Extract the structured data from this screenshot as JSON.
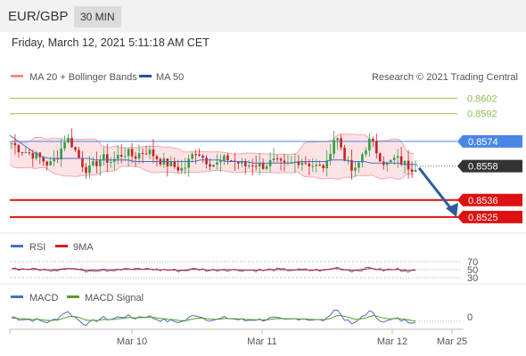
{
  "header": {
    "pair": "EUR/GBP",
    "timeframe": "30 MIN"
  },
  "timestamp": "Friday, March 12, 2021 5:11:18 AM CET",
  "legend": {
    "bollinger": "MA 20 + Bollinger Bands",
    "ma50": "MA 50",
    "rsi": "RSI",
    "rsi_ma": "9MA",
    "macd": "MACD",
    "macd_signal": "MACD Signal"
  },
  "copyright": "Research © 2021 Trading Central",
  "colors": {
    "up": "#2ea043",
    "down": "#cc1f1f",
    "ma50": "#4a6fbf",
    "bollinger": "#f2a8ae",
    "bollinger_fill": "#fde3e6",
    "resistance": "#8fbf55",
    "support": "#dd1111",
    "pivot": "#4a86e8",
    "last": "#333333",
    "arrow": "#2b5d9c",
    "macd_signal": "#5a9a2a"
  },
  "chart_data": [
    {
      "type": "candlestick",
      "title": "EUR/GBP",
      "ylim": [
        0.8518,
        0.8608
      ],
      "x_ticks": [
        "Mar 10",
        "Mar 11",
        "Mar 12",
        "Mar 25"
      ],
      "levels": [
        {
          "label": "0.8602",
          "value": 0.8602,
          "kind": "resistance"
        },
        {
          "label": "0.8592",
          "value": 0.8592,
          "kind": "resistance"
        },
        {
          "label": "0.8574",
          "value": 0.8574,
          "kind": "pivot"
        },
        {
          "label": "0.8558",
          "value": 0.8558,
          "kind": "last"
        },
        {
          "label": "0.8536",
          "value": 0.8536,
          "kind": "support"
        },
        {
          "label": "0.8525",
          "value": 0.8525,
          "kind": "support"
        }
      ],
      "close_path": [
        0.8573,
        0.8571,
        0.8569,
        0.8568,
        0.8567,
        0.8566,
        0.8565,
        0.8564,
        0.8562,
        0.856,
        0.8559,
        0.8562,
        0.8565,
        0.857,
        0.8576,
        0.8575,
        0.8571,
        0.8566,
        0.8561,
        0.8557,
        0.8555,
        0.8558,
        0.856,
        0.8562,
        0.8563,
        0.8562,
        0.8561,
        0.8563,
        0.8565,
        0.8566,
        0.8567,
        0.8565,
        0.8564,
        0.8566,
        0.8567,
        0.8568,
        0.8567,
        0.8565,
        0.8563,
        0.8561,
        0.856,
        0.8559,
        0.8558,
        0.8557,
        0.8556,
        0.8557,
        0.8561,
        0.8565,
        0.8568,
        0.8566,
        0.8563,
        0.8561,
        0.856,
        0.8559,
        0.856,
        0.8562,
        0.8563,
        0.8562,
        0.8561,
        0.856,
        0.8559,
        0.8558,
        0.8559,
        0.856,
        0.8559,
        0.8558,
        0.8559,
        0.856,
        0.8561,
        0.856,
        0.8559,
        0.8558,
        0.8559,
        0.856,
        0.8561,
        0.8562,
        0.8561,
        0.856,
        0.8559,
        0.8558,
        0.8557,
        0.8558,
        0.8559,
        0.857,
        0.8577,
        0.8575,
        0.8568,
        0.8561,
        0.8557,
        0.8553,
        0.8558,
        0.8565,
        0.857,
        0.8574,
        0.8572,
        0.8567,
        0.8563,
        0.856,
        0.8559,
        0.8562,
        0.8563,
        0.8561,
        0.856,
        0.8558,
        0.8557,
        0.8558
      ],
      "ma50_path": [
        0.8578,
        0.8575,
        0.8572,
        0.8569,
        0.8566,
        0.8564,
        0.8563,
        0.8563,
        0.8563,
        0.8563,
        0.8563,
        0.8563,
        0.8563,
        0.8562,
        0.8562,
        0.8562,
        0.8562,
        0.8562,
        0.8562,
        0.8561,
        0.8561,
        0.8561,
        0.8561,
        0.8561,
        0.8561,
        0.8561,
        0.8561,
        0.8561,
        0.8561,
        0.8562,
        0.8562,
        0.8562,
        0.8562,
        0.8561,
        0.8561,
        0.8561,
        0.8561,
        0.856,
        0.856,
        0.856,
        0.856,
        0.856,
        0.856,
        0.856,
        0.8561,
        0.8561,
        0.8561,
        0.8561,
        0.8561,
        0.8562,
        0.8562,
        0.8562,
        0.8561,
        0.8561,
        0.8561,
        0.856,
        0.856,
        0.856,
        0.856,
        0.856,
        0.8559,
        0.8559,
        0.8559
      ],
      "forecast_arrow": {
        "from": 0.8558,
        "to": 0.8525
      }
    },
    {
      "type": "line",
      "title": "RSI",
      "y_ticks": [
        70,
        50,
        30
      ],
      "series": [
        {
          "name": "RSI"
        },
        {
          "name": "9MA"
        }
      ]
    },
    {
      "type": "line",
      "title": "MACD",
      "y_ticks": [
        0
      ],
      "series": [
        {
          "name": "MACD"
        },
        {
          "name": "MACD Signal"
        }
      ]
    }
  ]
}
